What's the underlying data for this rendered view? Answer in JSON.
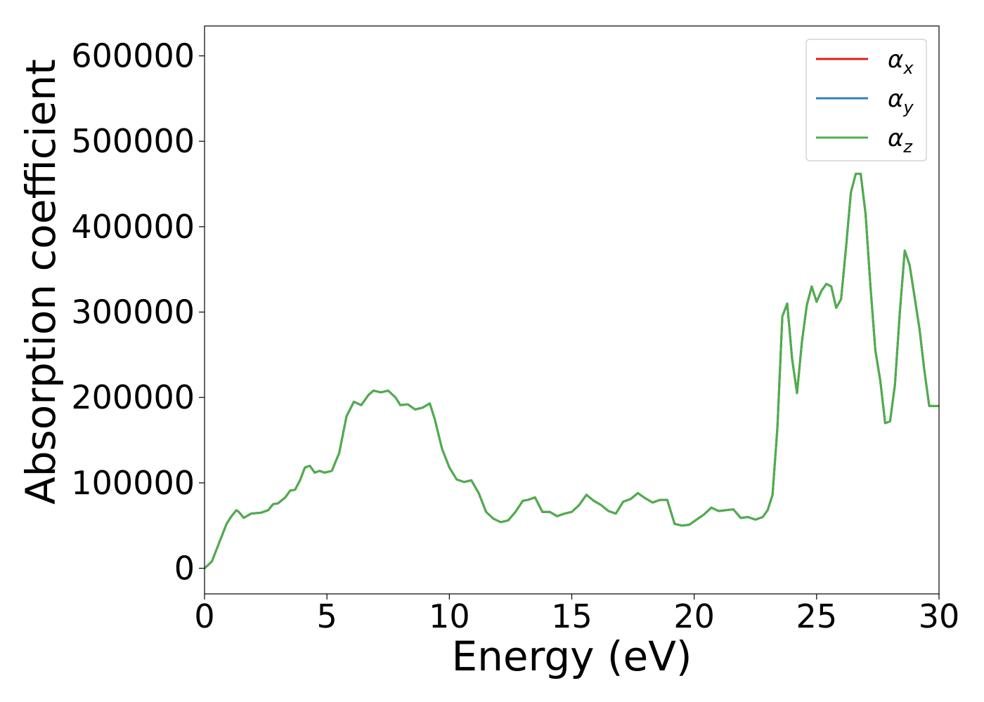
{
  "chart_data": {
    "type": "line",
    "title": "",
    "xlabel": "Energy (eV)",
    "ylabel": "Absorption coefficient",
    "xlim": [
      0,
      30
    ],
    "ylim": [
      -30000,
      635000
    ],
    "x_ticks": [
      0,
      5,
      10,
      15,
      20,
      25,
      30
    ],
    "x_tick_labels": [
      "0",
      "5",
      "10",
      "15",
      "20",
      "25",
      "30"
    ],
    "y_ticks": [
      0,
      100000,
      200000,
      300000,
      400000,
      500000,
      600000
    ],
    "y_tick_labels": [
      "0",
      "100000",
      "200000",
      "300000",
      "400000",
      "500000",
      "600000"
    ],
    "grid": false,
    "legend_position": "top-right",
    "x": [
      0,
      0.3,
      0.6,
      0.9,
      1.1,
      1.3,
      1.4,
      1.6,
      1.9,
      2.3,
      2.6,
      2.8,
      3.0,
      3.3,
      3.5,
      3.7,
      3.9,
      4.1,
      4.3,
      4.5,
      4.7,
      4.9,
      5.2,
      5.5,
      5.8,
      6.1,
      6.4,
      6.7,
      6.9,
      7.2,
      7.5,
      7.8,
      8.0,
      8.3,
      8.6,
      8.9,
      9.2,
      9.4,
      9.7,
      10.0,
      10.3,
      10.6,
      10.9,
      11.2,
      11.5,
      11.8,
      12.1,
      12.4,
      12.7,
      13.0,
      13.2,
      13.5,
      13.8,
      14.1,
      14.4,
      14.7,
      15.0,
      15.3,
      15.6,
      15.9,
      16.2,
      16.5,
      16.8,
      17.1,
      17.4,
      17.7,
      18.0,
      18.3,
      18.6,
      18.9,
      19.2,
      19.5,
      19.8,
      20.1,
      20.4,
      20.7,
      21.0,
      21.3,
      21.6,
      21.9,
      22.2,
      22.5,
      22.8,
      23.0,
      23.2,
      23.4,
      23.6,
      23.8,
      24.0,
      24.2,
      24.4,
      24.6,
      24.8,
      25.0,
      25.2,
      25.4,
      25.6,
      25.8,
      26.0,
      26.2,
      26.4,
      26.6,
      26.8,
      27.0,
      27.2,
      27.4,
      27.6,
      27.8,
      28.0,
      28.2,
      28.4,
      28.6,
      28.8,
      29.0,
      29.2,
      29.4,
      29.6,
      29.8,
      30.0
    ],
    "series": [
      {
        "name": "α_x",
        "color": "#e41a1c",
        "values": [
          0,
          8000,
          30000,
          52000,
          61000,
          68000,
          66000,
          59000,
          64000,
          65000,
          68000,
          75000,
          76000,
          83000,
          91000,
          92000,
          103000,
          118000,
          120000,
          112000,
          114000,
          112000,
          114000,
          135000,
          178000,
          195000,
          191000,
          203000,
          208000,
          206000,
          208000,
          200000,
          191000,
          192000,
          186000,
          188000,
          193000,
          175000,
          140000,
          118000,
          104000,
          101000,
          103000,
          88000,
          66000,
          58000,
          54000,
          56000,
          66000,
          79000,
          80000,
          83000,
          66000,
          66000,
          61000,
          64000,
          66000,
          74000,
          86000,
          79000,
          74000,
          67000,
          64000,
          78000,
          81000,
          88000,
          82000,
          77000,
          80000,
          80000,
          52000,
          50000,
          51000,
          57000,
          63000,
          71000,
          67000,
          68000,
          69000,
          59000,
          60000,
          57000,
          60000,
          68000,
          86000,
          165000,
          295000,
          310000,
          245000,
          205000,
          265000,
          308000,
          330000,
          312000,
          325000,
          333000,
          330000,
          305000,
          315000,
          375000,
          440000,
          462000,
          462000,
          415000,
          330000,
          255000,
          220000,
          170000,
          172000,
          215000,
          300000,
          372000,
          355000,
          318000,
          281000,
          232000,
          190000,
          190000,
          190000
        ]
      },
      {
        "name": "α_y",
        "color": "#377eb8",
        "values": [
          0,
          8000,
          30000,
          52000,
          61000,
          68000,
          66000,
          59000,
          64000,
          65000,
          68000,
          75000,
          76000,
          83000,
          91000,
          92000,
          103000,
          118000,
          120000,
          112000,
          114000,
          112000,
          114000,
          135000,
          178000,
          195000,
          191000,
          203000,
          208000,
          206000,
          208000,
          200000,
          191000,
          192000,
          186000,
          188000,
          193000,
          175000,
          140000,
          118000,
          104000,
          101000,
          103000,
          88000,
          66000,
          58000,
          54000,
          56000,
          66000,
          79000,
          80000,
          83000,
          66000,
          66000,
          61000,
          64000,
          66000,
          74000,
          86000,
          79000,
          74000,
          67000,
          64000,
          78000,
          81000,
          88000,
          82000,
          77000,
          80000,
          80000,
          52000,
          50000,
          51000,
          57000,
          63000,
          71000,
          67000,
          68000,
          69000,
          59000,
          60000,
          57000,
          60000,
          68000,
          86000,
          165000,
          295000,
          310000,
          245000,
          205000,
          265000,
          308000,
          330000,
          312000,
          325000,
          333000,
          330000,
          305000,
          315000,
          375000,
          440000,
          462000,
          462000,
          415000,
          330000,
          255000,
          220000,
          170000,
          172000,
          215000,
          300000,
          372000,
          355000,
          318000,
          281000,
          232000,
          190000,
          190000,
          190000
        ]
      },
      {
        "name": "α_z",
        "color": "#4daf4a",
        "values": [
          0,
          8000,
          30000,
          52000,
          61000,
          68000,
          66000,
          59000,
          64000,
          65000,
          68000,
          75000,
          76000,
          83000,
          91000,
          92000,
          103000,
          118000,
          120000,
          112000,
          114000,
          112000,
          114000,
          135000,
          178000,
          195000,
          191000,
          203000,
          208000,
          206000,
          208000,
          200000,
          191000,
          192000,
          186000,
          188000,
          193000,
          175000,
          140000,
          118000,
          104000,
          101000,
          103000,
          88000,
          66000,
          58000,
          54000,
          56000,
          66000,
          79000,
          80000,
          83000,
          66000,
          66000,
          61000,
          64000,
          66000,
          74000,
          86000,
          79000,
          74000,
          67000,
          64000,
          78000,
          81000,
          88000,
          82000,
          77000,
          80000,
          80000,
          52000,
          50000,
          51000,
          57000,
          63000,
          71000,
          67000,
          68000,
          69000,
          59000,
          60000,
          57000,
          60000,
          68000,
          86000,
          165000,
          295000,
          310000,
          245000,
          205000,
          265000,
          308000,
          330000,
          312000,
          325000,
          333000,
          330000,
          305000,
          315000,
          375000,
          440000,
          462000,
          462000,
          415000,
          330000,
          255000,
          220000,
          170000,
          172000,
          215000,
          300000,
          372000,
          355000,
          318000,
          281000,
          232000,
          190000,
          190000,
          190000
        ]
      }
    ],
    "legend": [
      {
        "symbol": "α",
        "subscript": "x",
        "color": "#e41a1c"
      },
      {
        "symbol": "α",
        "subscript": "y",
        "color": "#377eb8"
      },
      {
        "symbol": "α",
        "subscript": "z",
        "color": "#4daf4a"
      }
    ]
  }
}
